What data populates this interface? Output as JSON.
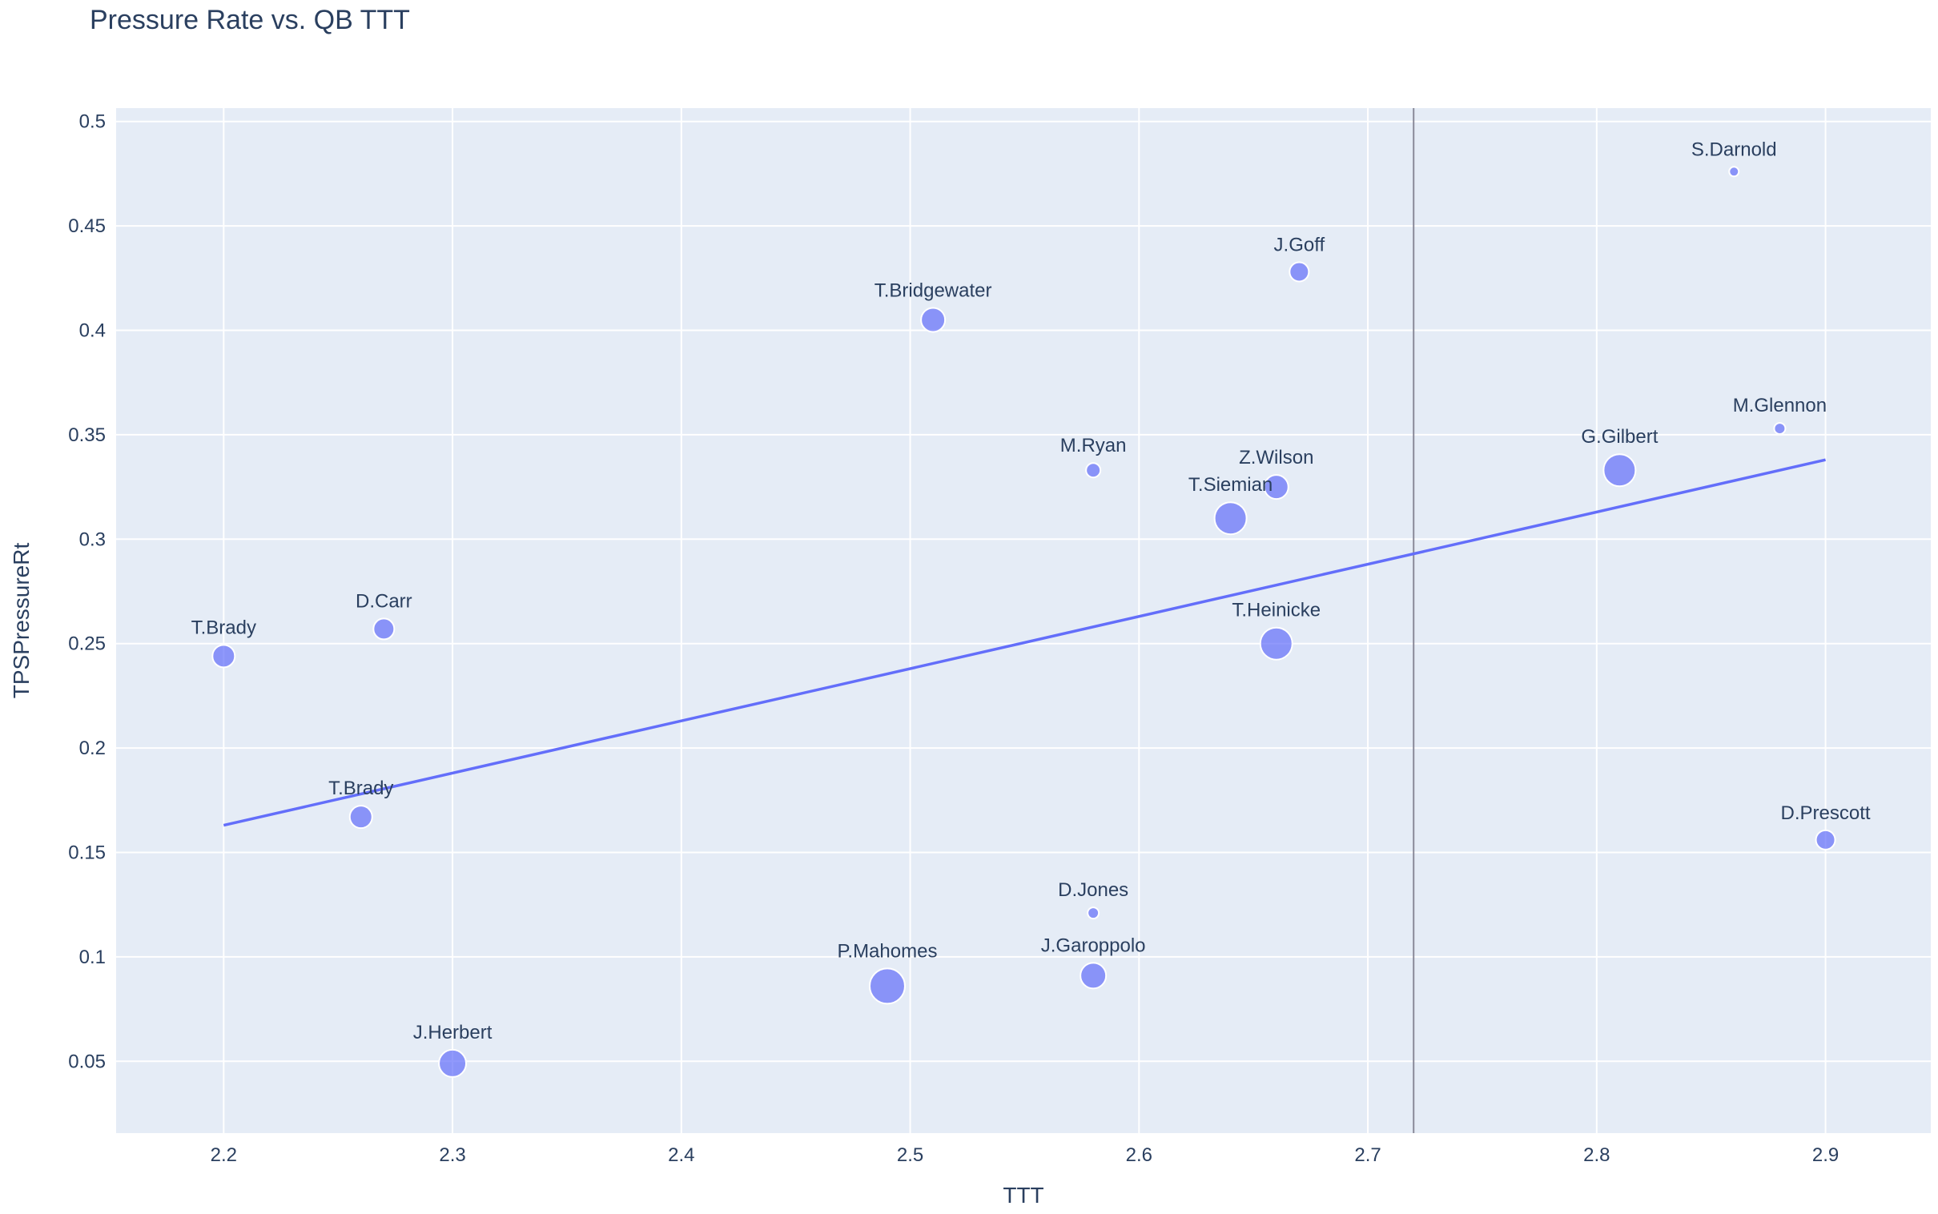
{
  "chart_data": {
    "type": "scatter",
    "title": "Pressure Rate vs. QB TTT",
    "xlabel": "TTT",
    "ylabel": "TPSPressureRt",
    "xlim": [
      2.153,
      2.946
    ],
    "ylim": [
      0.0156,
      0.5064
    ],
    "x_ticks": [
      2.2,
      2.3,
      2.4,
      2.5,
      2.6,
      2.7,
      2.8,
      2.9
    ],
    "x_tick_labels": [
      "2.2",
      "2.3",
      "2.4",
      "2.5",
      "2.6",
      "2.7",
      "2.8",
      "2.9"
    ],
    "y_ticks": [
      0.05,
      0.1,
      0.15,
      0.2,
      0.25,
      0.3,
      0.35,
      0.4,
      0.45,
      0.5
    ],
    "y_tick_labels": [
      "0.05",
      "0.1",
      "0.15",
      "0.2",
      "0.25",
      "0.3",
      "0.35",
      "0.4",
      "0.45",
      "0.5"
    ],
    "grid": true,
    "legend": "none",
    "colors": {
      "plot_background": "#e5ecf6",
      "marker": "#636efa",
      "trendline": "#636efa",
      "vline": "#8a8a99",
      "text": "#2a3f5f"
    },
    "points": [
      {
        "label": "T.Brady",
        "x": 2.2,
        "y": 0.244,
        "size": 14
      },
      {
        "label": "D.Carr",
        "x": 2.27,
        "y": 0.257,
        "size": 13
      },
      {
        "label": "T.Brady",
        "x": 2.26,
        "y": 0.167,
        "size": 14
      },
      {
        "label": "J.Herbert",
        "x": 2.3,
        "y": 0.049,
        "size": 17
      },
      {
        "label": "T.Bridgewater",
        "x": 2.51,
        "y": 0.405,
        "size": 15
      },
      {
        "label": "P.Mahomes",
        "x": 2.49,
        "y": 0.086,
        "size": 22
      },
      {
        "label": "M.Ryan",
        "x": 2.58,
        "y": 0.333,
        "size": 9
      },
      {
        "label": "D.Jones",
        "x": 2.58,
        "y": 0.121,
        "size": 7
      },
      {
        "label": "J.Garoppolo",
        "x": 2.58,
        "y": 0.091,
        "size": 16
      },
      {
        "label": "T.Siemian",
        "x": 2.64,
        "y": 0.31,
        "size": 20
      },
      {
        "label": "Z.Wilson",
        "x": 2.66,
        "y": 0.325,
        "size": 15
      },
      {
        "label": "T.Heinicke",
        "x": 2.66,
        "y": 0.25,
        "size": 20
      },
      {
        "label": "J.Goff",
        "x": 2.67,
        "y": 0.428,
        "size": 12
      },
      {
        "label": "G.Gilbert",
        "x": 2.81,
        "y": 0.333,
        "size": 20
      },
      {
        "label": "S.Darnold",
        "x": 2.86,
        "y": 0.476,
        "size": 6
      },
      {
        "label": "M.Glennon",
        "x": 2.88,
        "y": 0.353,
        "size": 7
      },
      {
        "label": "D.Prescott",
        "x": 2.9,
        "y": 0.156,
        "size": 12
      }
    ],
    "trendline": {
      "x": [
        2.2,
        2.9
      ],
      "y": [
        0.163,
        0.338
      ]
    },
    "vline_x": 2.72
  }
}
